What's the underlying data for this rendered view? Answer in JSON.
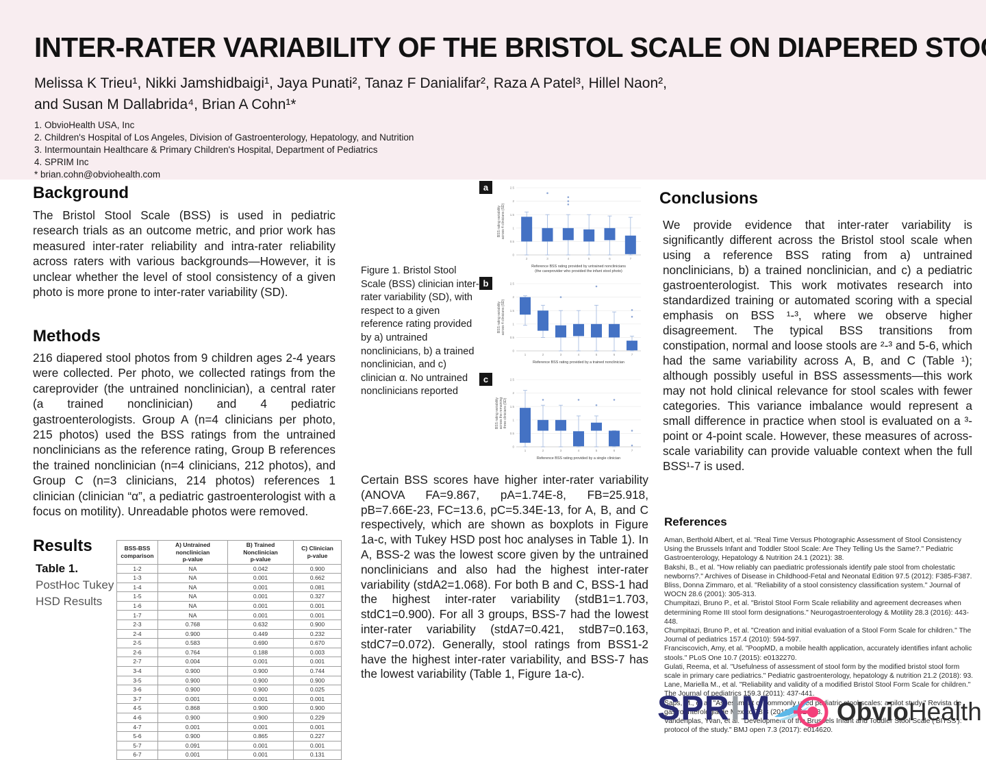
{
  "header": {
    "title": "INTER-RATER VARIABILITY OF THE BRISTOL SCALE ON DIAPERED STOOL",
    "authors_line1": "Melissa K Trieu¹, Nikki Jamshidbaigi¹, Jaya Punati², Tanaz F Danialifar², Raza A Patel³, Hillel Naon²,",
    "authors_line2": "and Susan M Dallabrida⁴, Brian A Cohn¹*",
    "affiliations": [
      "1. ObvioHealth USA, Inc",
      "2. Children's Hospital of Los Angeles, Division of Gastroenterology, Hepatology, and Nutrition",
      "3. Intermountain Healthcare & Primary Children's Hospital, Department of Pediatrics",
      "4. SPRIM Inc",
      "* brian.cohn@obviohealth.com"
    ]
  },
  "background": {
    "heading": "Background",
    "body": "The Bristol Stool Scale (BSS) is used in pediatric research trials as an outcome metric, and prior work has measured inter-rater reliability and intra-rater reliability across raters with various backgrounds—However, it is unclear whether the level of stool consistency of a given photo is more prone to inter-rater variability (SD)."
  },
  "methods": {
    "heading": "Methods",
    "body": "216 diapered stool photos from 9 children ages 2-4 years were collected. Per photo, we collected ratings from the careprovider (the untrained nonclinician), a central rater (a trained nonclinician) and 4 pediatric gastroenterologists. Group A (n=4 clinicians per photo, 215 photos) used the BSS ratings from the untrained nonclinicians as the reference rating, Group B references the trained nonclinician (n=4 clinicians, 212 photos), and Group C (n=3 clinicians, 214 photos) references 1 clinician (clinician “α”, a pediatric gastroenterologist with a focus on motility). Unreadable photos were removed."
  },
  "results": {
    "heading": "Results",
    "table_caption_bold": "Table 1.",
    "table_caption_rest": " PostHoc Tukey HSD Results",
    "table": {
      "headers": [
        [
          "BSS-BSS",
          "comparison"
        ],
        [
          "A) Untrained nonclinician",
          "p-value"
        ],
        [
          "B) Trained Nonclinician",
          "p-value"
        ],
        [
          "C) Clinician",
          "p-value"
        ]
      ],
      "rows": [
        [
          "1-2",
          "NA",
          "0.042",
          "0.900"
        ],
        [
          "1-3",
          "NA",
          "0.001",
          "0.662"
        ],
        [
          "1-4",
          "NA",
          "0.001",
          "0.081"
        ],
        [
          "1-5",
          "NA",
          "0.001",
          "0.327"
        ],
        [
          "1-6",
          "NA",
          "0.001",
          "0.001"
        ],
        [
          "1-7",
          "NA",
          "0.001",
          "0.001"
        ],
        [
          "2-3",
          "0.768",
          "0.632",
          "0.900"
        ],
        [
          "2-4",
          "0.900",
          "0.449",
          "0.232"
        ],
        [
          "2-5",
          "0.583",
          "0.690",
          "0.670"
        ],
        [
          "2-6",
          "0.764",
          "0.188",
          "0.003"
        ],
        [
          "2-7",
          "0.004",
          "0.001",
          "0.001"
        ],
        [
          "3-4",
          "0.900",
          "0.900",
          "0.744"
        ],
        [
          "3-5",
          "0.900",
          "0.900",
          "0.900"
        ],
        [
          "3-6",
          "0.900",
          "0.900",
          "0.025"
        ],
        [
          "3-7",
          "0.001",
          "0.001",
          "0.001"
        ],
        [
          "4-5",
          "0.868",
          "0.900",
          "0.900"
        ],
        [
          "4-6",
          "0.900",
          "0.900",
          "0.229"
        ],
        [
          "4-7",
          "0.001",
          "0.001",
          "0.001"
        ],
        [
          "5-6",
          "0.900",
          "0.865",
          "0.227"
        ],
        [
          "5-7",
          "0.091",
          "0.001",
          "0.001"
        ],
        [
          "6-7",
          "0.001",
          "0.001",
          "0.131"
        ]
      ]
    },
    "paragraph": "Certain BSS scores have higher inter-rater variability (ANOVA FA=9.867, pA=1.74E-8, FB=25.918, pB=7.66E-23, FC=13.6, pC=5.34E-13, for A, B, and C respectively, which are shown as boxplots in Figure 1a-c, with Tukey HSD post hoc analyses in Table 1). In A, BSS-2 was the lowest score given by the untrained nonclinicians and also had the highest inter-rater variability (stdA2=1.068). For both B and C, BSS-1 had the highest inter-rater variability (stdB1=1.703, stdC1=0.900). For all 3 groups, BSS-7 had the lowest inter-rater variability (stdA7=0.421, stdB7=0.163, stdC7=0.072). Generally, stool ratings from BSS1-2 have the highest inter-rater variability, and BSS-7 has the lowest variability (Table 1, Figure 1a-c)."
  },
  "figure": {
    "caption": "Figure 1. Bristol Stool Scale (BSS) clinician inter-rater variability (SD), with respect to a given reference rating provided by a) untrained nonclinicians, b) a trained nonclinician, and c) clinician α. No untrained nonclinicians reported",
    "panel_labels": [
      "a",
      "b",
      "c"
    ]
  },
  "conclusions": {
    "heading": "Conclusions",
    "body": "We provide evidence that inter-rater variability is significantly different across the Bristol stool scale when using a reference BSS rating from a) untrained nonclinicians, b) a trained nonclinician, and c) a pediatric gastroenterologist. This work motivates research into standardized training or automated scoring with a special emphasis on BSS ¹-³, where we observe higher disagreement. The typical BSS transitions from constipation, normal and loose stools are ²-³ and 5-6, which had the same variability across A, B, and C (Table ¹); although possibly useful in BSS assessments—this work may not hold clinical relevance for stool scales with fewer categories. This variance imbalance would represent a small difference in practice when stool is evaluated on a ³-point or 4-point scale. However, these measures of across-scale variability can provide valuable context when the full BSS¹-7 is used."
  },
  "references": {
    "heading": "References",
    "items": [
      "Aman, Berthold Albert, et al. \"Real Time Versus Photographic Assessment of Stool Consistency Using the Brussels Infant and Toddler Stool Scale: Are They Telling Us the Same?.\" Pediatric Gastroenterology, Hepatology & Nutrition 24.1 (2021): 38.",
      "Bakshi, B., et al. \"How reliably can paediatric professionals identify pale stool from cholestatic newborns?.\" Archives of Disease in Childhood-Fetal and Neonatal Edition 97.5 (2012): F385-F387.",
      "Bliss, Donna Zimmaro, et al. \"Reliability of a stool consistency classification system.\" Journal of WOCN 28.6 (2001): 305-313.",
      "Chumpitazi, Bruno P., et al. \"Bristol Stool Form Scale reliability and agreement decreases when determining Rome III stool form designations.\" Neurogastroenterology & Motility 28.3 (2016): 443-448.",
      "Chumpitazi, Bruno P., et al. \"Creation and initial evaluation of a Stool Form Scale for children.\" The Journal of pediatrics 157.4 (2010): 594-597.",
      "Franciscovich, Amy, et al. \"PoopMD, a mobile health application, accurately identifies infant acholic stools.\" PLoS One 10.7 (2015): e0132270.",
      "Gulati, Reema, et al. \"Usefulness of assessment of stool form by the modified bristol stool form scale in primary care pediatrics.\" Pediatric gastroenterology, hepatology & nutrition 21.2 (2018): 93.",
      "Lane, Mariella M., et al. \"Reliability and validity of a modified Bristol Stool Form Scale for children.\" The Journal of pediatrics 159.3 (2011): 437-441.",
      "Saps, M., et al. \"Assessment of commonly used pediatric stool scales: a pilot study.\" Revista de gastroenterologia de Mexico 78.3 (2013): 151-158.",
      "Vandenplas, Yvan, et al. \"Development of the Brussels Infant and Toddler Stool Scale ('BITSS'): protocol of the study.\" BMJ open 7.3 (2017): e014620."
    ]
  },
  "logos": {
    "sprim_spr": "SPR",
    "sprim_i": "I",
    "sprim_m": "M",
    "obvio_bold": "Obvio",
    "obvio_light": "Health"
  },
  "colors": {
    "header_bg": "#f8edf0",
    "box_blue": "#4472c4",
    "whisker_blue": "#9db5dd",
    "sprim_navy": "#282a73",
    "obvio_pink": "#f43f7a"
  },
  "chart_data": [
    {
      "type": "boxplot",
      "panel": "a",
      "ylabel_lines": [
        "BSS rating variability",
        "across 4 clinicians (SD)"
      ],
      "xlabel": "Reference BSS rating provided by untrained nonclinicians",
      "xlabel2": "(the careprovider who provided the infant stool photo)",
      "ylim": [
        0,
        2.5
      ],
      "yticks": [
        0,
        0.5,
        1,
        1.5,
        2,
        2.5
      ],
      "categories": [
        "2",
        "3",
        "4",
        "5",
        "6",
        "7"
      ],
      "boxes": [
        {
          "lo": 0,
          "q1": 0.5,
          "q3": 1.42,
          "hi": 1.6,
          "outliers": []
        },
        {
          "lo": 0,
          "q1": 0.5,
          "q3": 1.0,
          "hi": 1.5,
          "outliers": [
            2.3
          ]
        },
        {
          "lo": 0,
          "q1": 0.55,
          "q3": 1.0,
          "hi": 1.5,
          "outliers": [
            2.15,
            2.0,
            1.88
          ]
        },
        {
          "lo": 0,
          "q1": 0.5,
          "q3": 0.95,
          "hi": 1.5,
          "outliers": []
        },
        {
          "lo": 0,
          "q1": 0.55,
          "q3": 1.0,
          "hi": 1.45,
          "outliers": []
        },
        {
          "lo": 0,
          "q1": 0.03,
          "q3": 0.72,
          "hi": 1.4,
          "outliers": []
        }
      ]
    },
    {
      "type": "boxplot",
      "panel": "b",
      "ylabel_lines": [
        "BSS rating variability",
        "across 4 clinicians (SD)"
      ],
      "xlabel": "Reference BSS rating provided by a trained nonclinician",
      "xlabel2": "",
      "ylim": [
        0,
        2.5
      ],
      "yticks": [
        0,
        0.5,
        1,
        1.5,
        2,
        2.5
      ],
      "categories": [
        "1",
        "2",
        "3",
        "4",
        "5",
        "6",
        "7"
      ],
      "boxes": [
        {
          "lo": 0.95,
          "q1": 1.35,
          "q3": 2.0,
          "hi": 2.05,
          "outliers": []
        },
        {
          "lo": 0.5,
          "q1": 0.75,
          "q3": 1.5,
          "hi": 1.7,
          "outliers": []
        },
        {
          "lo": 0,
          "q1": 0.5,
          "q3": 0.95,
          "hi": 1.5,
          "outliers": [
            2.0
          ]
        },
        {
          "lo": 0,
          "q1": 0.55,
          "q3": 1.0,
          "hi": 1.5,
          "outliers": []
        },
        {
          "lo": 0,
          "q1": 0.5,
          "q3": 1.0,
          "hi": 1.7,
          "outliers": [
            2.4
          ]
        },
        {
          "lo": 0,
          "q1": 0.5,
          "q3": 1.0,
          "hi": 1.45,
          "outliers": []
        },
        {
          "lo": 0,
          "q1": 0.02,
          "q3": 0.38,
          "hi": 0.55,
          "outliers": [
            1.52,
            1.27
          ]
        }
      ]
    },
    {
      "type": "boxplot",
      "panel": "c",
      "ylabel_lines": [
        "BSS rating variability",
        "across the remaining",
        "three clinicians (SD)"
      ],
      "xlabel": "Reference BSS rating provided by a single clinician",
      "xlabel2": "",
      "ylim": [
        0,
        2.5
      ],
      "yticks": [
        0,
        0.5,
        1,
        1.5,
        2,
        2.5
      ],
      "categories": [
        "1",
        "2",
        "3",
        "4",
        "5",
        "6",
        "7"
      ],
      "boxes": [
        {
          "lo": 0,
          "q1": 0.15,
          "q3": 1.45,
          "hi": 2.1,
          "outliers": []
        },
        {
          "lo": 0,
          "q1": 0.6,
          "q3": 1.0,
          "hi": 1.55,
          "outliers": [
            1.75
          ]
        },
        {
          "lo": 0,
          "q1": 0.6,
          "q3": 1.0,
          "hi": 1.55,
          "outliers": []
        },
        {
          "lo": 0,
          "q1": 0.02,
          "q3": 0.58,
          "hi": 1.15,
          "outliers": [
            1.75
          ]
        },
        {
          "lo": 0,
          "q1": 0.6,
          "q3": 0.9,
          "hi": 1.15,
          "outliers": [
            1.55
          ]
        },
        {
          "lo": 0,
          "q1": 0.02,
          "q3": 0.6,
          "hi": 0.6,
          "outliers": [
            1.75
          ]
        },
        {
          "lo": 0,
          "q1": 0,
          "q3": 0,
          "hi": 0,
          "outliers": [
            0.6,
            0.05
          ]
        }
      ]
    }
  ]
}
